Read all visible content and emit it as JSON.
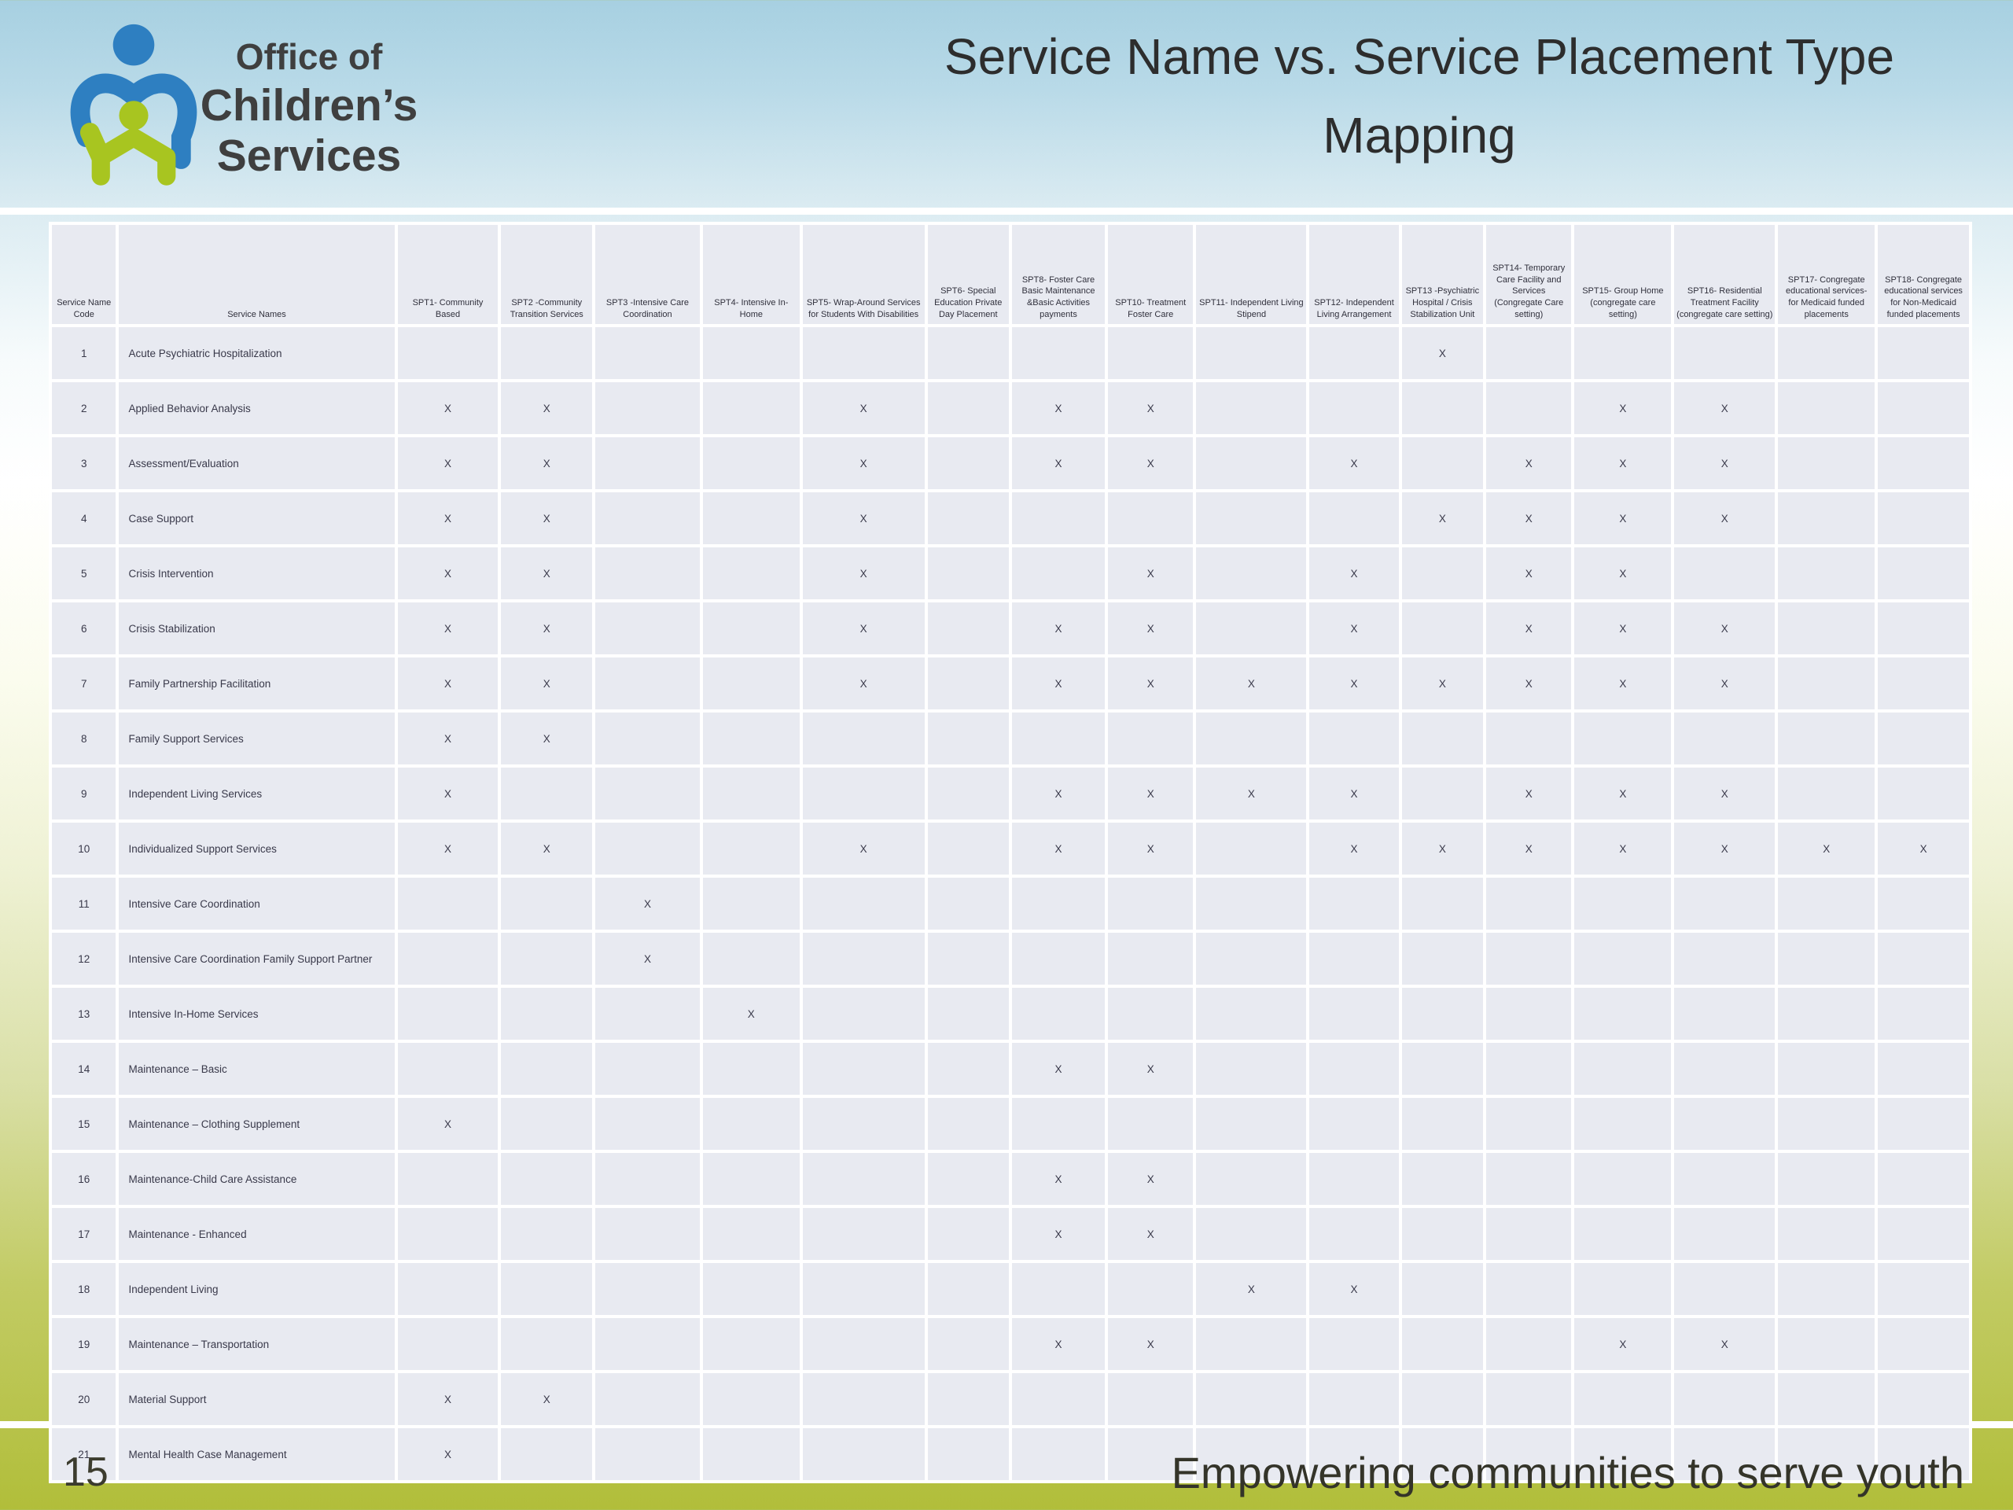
{
  "logo": {
    "line1": "Office of",
    "line2": "Children’s Services"
  },
  "title": {
    "line1": "Service Name vs. Service Placement Type",
    "line2": "Mapping"
  },
  "footer": {
    "page_number": "15",
    "tagline": "Empowering communities to serve youth"
  },
  "colors": {
    "background_top_blue": "#a7d0e1",
    "background_bottom_olive": "#b1be3a",
    "cell_background": "#e8eaf1",
    "grid_line": "#ffffff",
    "logo_blue": "#2e7fc1",
    "logo_green": "#a8c520",
    "text_dark": "#2d2d2d"
  },
  "table": {
    "mark": "X",
    "columns": [
      "Service Name Code",
      "Service Names",
      "SPT1- Community Based",
      "SPT2 -Community Transition Services",
      "SPT3 -Intensive Care Coordination",
      "SPT4- Intensive In-Home",
      "SPT5- Wrap-Around Services for Students With Disabilities",
      "SPT6- Special Education Private Day Placement",
      "SPT8- Foster Care Basic Maintenance &Basic Activities payments",
      "SPT10- Treatment Foster Care",
      "SPT11- Independent Living Stipend",
      "SPT12- Independent Living Arrangement",
      "SPT13 -Psychiatric Hospital / Crisis Stabilization Unit",
      "SPT14- Temporary Care Facility and Services (Congregate Care setting)",
      "SPT15- Group Home (congregate care setting)",
      "SPT16- Residential Treatment Facility (congregate care setting)",
      "SPT17- Congregate educational services- for Medicaid funded placements",
      "SPT18- Congregate educational services for Non-Medicaid funded placements"
    ],
    "rows": [
      {
        "code": "1",
        "name": "Acute Psychiatric Hospitalization",
        "marks": [
          "",
          "",
          "",
          "",
          "",
          "",
          "",
          "",
          "",
          "",
          "X",
          "",
          "",
          "",
          "",
          ""
        ]
      },
      {
        "code": "2",
        "name": "Applied Behavior Analysis",
        "marks": [
          "X",
          "X",
          "",
          "",
          "X",
          "",
          "X",
          "X",
          "",
          "",
          "",
          "",
          "X",
          "X",
          "",
          ""
        ]
      },
      {
        "code": "3",
        "name": "Assessment/Evaluation",
        "marks": [
          "X",
          "X",
          "",
          "",
          "X",
          "",
          "X",
          "X",
          "",
          "X",
          "",
          "X",
          "X",
          "X",
          "",
          ""
        ]
      },
      {
        "code": "4",
        "name": "Case Support",
        "marks": [
          "X",
          "X",
          "",
          "",
          "X",
          "",
          "",
          "",
          "",
          "",
          "X",
          "X",
          "X",
          "X",
          "",
          ""
        ]
      },
      {
        "code": "5",
        "name": "Crisis Intervention",
        "marks": [
          "X",
          "X",
          "",
          "",
          "X",
          "",
          "",
          "X",
          "",
          "X",
          "",
          "X",
          "X",
          "",
          "",
          ""
        ]
      },
      {
        "code": "6",
        "name": "Crisis Stabilization",
        "marks": [
          "X",
          "X",
          "",
          "",
          "X",
          "",
          "X",
          "X",
          "",
          "X",
          "",
          "X",
          "X",
          "X",
          "",
          ""
        ]
      },
      {
        "code": "7",
        "name": "Family Partnership Facilitation",
        "marks": [
          "X",
          "X",
          "",
          "",
          "X",
          "",
          "X",
          "X",
          "X",
          "X",
          "X",
          "X",
          "X",
          "X",
          "",
          ""
        ]
      },
      {
        "code": "8",
        "name": "Family Support Services",
        "marks": [
          "X",
          "X",
          "",
          "",
          "",
          "",
          "",
          "",
          "",
          "",
          "",
          "",
          "",
          "",
          "",
          ""
        ]
      },
      {
        "code": "9",
        "name": "Independent Living Services",
        "marks": [
          "X",
          "",
          "",
          "",
          "",
          "",
          "X",
          "X",
          "X",
          "X",
          "",
          "X",
          "X",
          "X",
          "",
          ""
        ]
      },
      {
        "code": "10",
        "name": "Individualized Support Services",
        "marks": [
          "X",
          "X",
          "",
          "",
          "X",
          "",
          "X",
          "X",
          "",
          "X",
          "X",
          "X",
          "X",
          "X",
          "X",
          "X"
        ]
      },
      {
        "code": "11",
        "name": "Intensive Care Coordination",
        "marks": [
          "",
          "",
          "X",
          "",
          "",
          "",
          "",
          "",
          "",
          "",
          "",
          "",
          "",
          "",
          "",
          ""
        ]
      },
      {
        "code": "12",
        "name": "Intensive Care Coordination Family Support Partner",
        "marks": [
          "",
          "",
          "X",
          "",
          "",
          "",
          "",
          "",
          "",
          "",
          "",
          "",
          "",
          "",
          "",
          ""
        ]
      },
      {
        "code": "13",
        "name": "Intensive In-Home Services",
        "marks": [
          "",
          "",
          "",
          "X",
          "",
          "",
          "",
          "",
          "",
          "",
          "",
          "",
          "",
          "",
          "",
          ""
        ]
      },
      {
        "code": "14",
        "name": "Maintenance – Basic",
        "marks": [
          "",
          "",
          "",
          "",
          "",
          "",
          "X",
          "X",
          "",
          "",
          "",
          "",
          "",
          "",
          "",
          ""
        ]
      },
      {
        "code": "15",
        "name": "Maintenance – Clothing Supplement",
        "marks": [
          "X",
          "",
          "",
          "",
          "",
          "",
          "",
          "",
          "",
          "",
          "",
          "",
          "",
          "",
          "",
          ""
        ]
      },
      {
        "code": "16",
        "name": "Maintenance-Child Care Assistance",
        "marks": [
          "",
          "",
          "",
          "",
          "",
          "",
          "X",
          "X",
          "",
          "",
          "",
          "",
          "",
          "",
          "",
          ""
        ]
      },
      {
        "code": "17",
        "name": "Maintenance - Enhanced",
        "marks": [
          "",
          "",
          "",
          "",
          "",
          "",
          "X",
          "X",
          "",
          "",
          "",
          "",
          "",
          "",
          "",
          ""
        ]
      },
      {
        "code": "18",
        "name": "Independent Living",
        "marks": [
          "",
          "",
          "",
          "",
          "",
          "",
          "",
          "",
          "X",
          "X",
          "",
          "",
          "",
          "",
          "",
          ""
        ]
      },
      {
        "code": "19",
        "name": "Maintenance – Transportation",
        "marks": [
          "",
          "",
          "",
          "",
          "",
          "",
          "X",
          "X",
          "",
          "",
          "",
          "",
          "X",
          "X",
          "",
          ""
        ]
      },
      {
        "code": "20",
        "name": "Material Support",
        "marks": [
          "X",
          "X",
          "",
          "",
          "",
          "",
          "",
          "",
          "",
          "",
          "",
          "",
          "",
          "",
          "",
          ""
        ]
      },
      {
        "code": "21",
        "name": "Mental Health Case Management",
        "marks": [
          "X",
          "",
          "",
          "",
          "",
          "",
          "",
          "",
          "",
          "",
          "",
          "",
          "",
          "",
          "",
          ""
        ]
      }
    ]
  }
}
